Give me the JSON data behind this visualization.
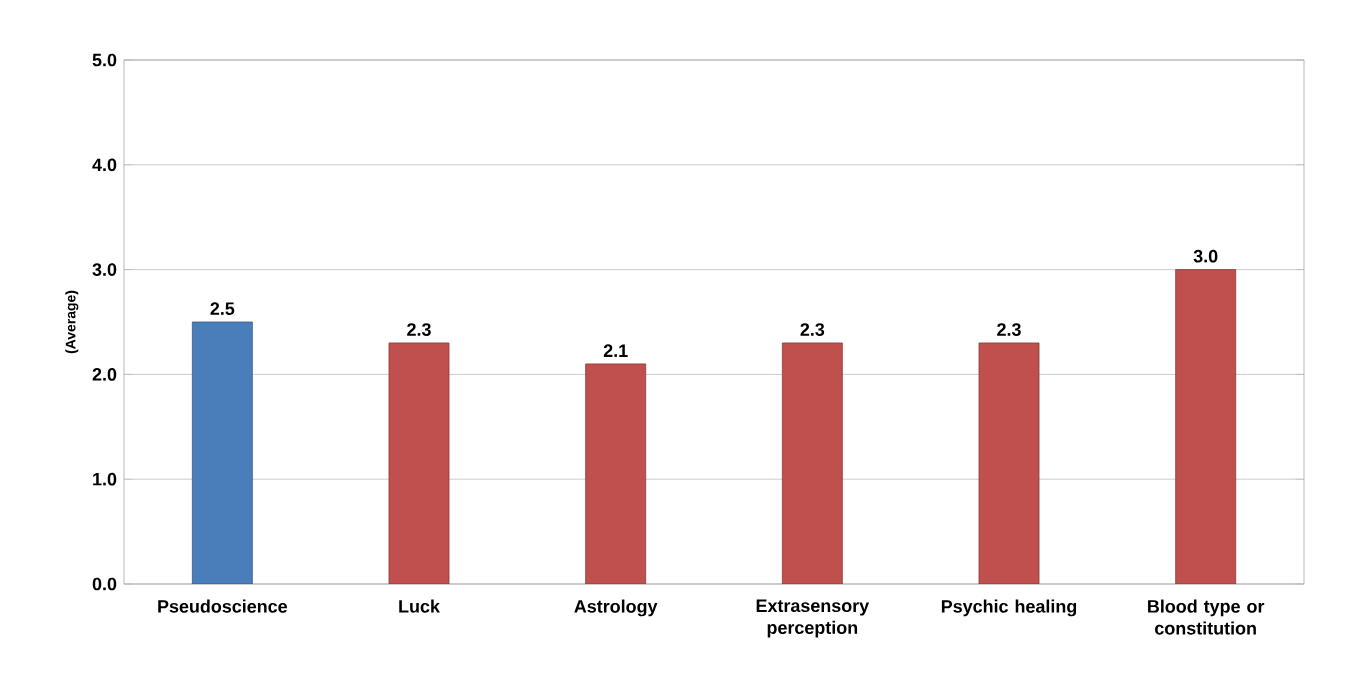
{
  "chart_data": {
    "type": "bar",
    "ylabel": "(Average)",
    "categories": [
      "Pseudoscience",
      "Luck",
      "Astrology",
      "Extrasensory perception",
      "Psychic healing",
      "Blood type or constitution"
    ],
    "values": [
      2.5,
      2.3,
      2.1,
      2.3,
      2.3,
      3.0
    ],
    "colors": [
      "#4a7ebb",
      "#c0504d",
      "#c0504d",
      "#c0504d",
      "#c0504d",
      "#c0504d"
    ],
    "ylim": [
      0,
      5
    ],
    "yticks": [
      {
        "value": 0,
        "label": "0.0"
      },
      {
        "value": 1,
        "label": "1.0"
      },
      {
        "value": 2,
        "label": "2.0"
      },
      {
        "value": 3,
        "label": "3.0"
      },
      {
        "value": 4,
        "label": "4.0"
      },
      {
        "value": 5,
        "label": "5.0"
      }
    ],
    "value_labels": [
      "2.5",
      "2.3",
      "2.1",
      "2.3",
      "2.3",
      "3.0"
    ],
    "grid": "y"
  }
}
